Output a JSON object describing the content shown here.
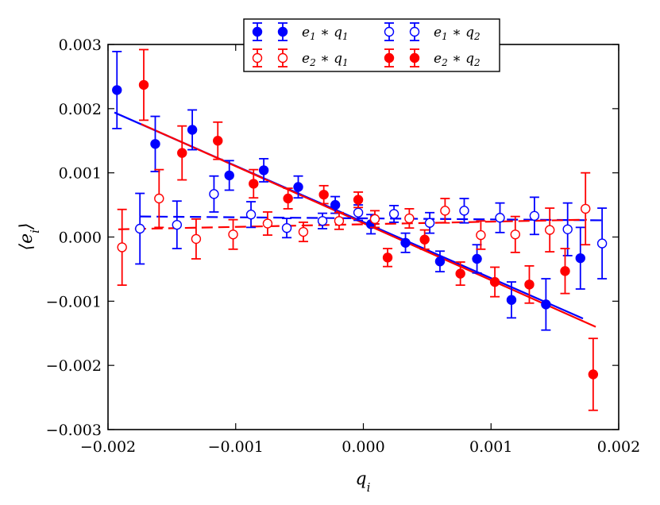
{
  "chart_data": {
    "type": "scatter",
    "title": "",
    "xlabel": "q_i",
    "ylabel": "⟨e_i⟩",
    "xlim": [
      -0.002,
      0.002
    ],
    "ylim": [
      -0.003,
      0.003
    ],
    "grid": false,
    "legend_position": "top-center",
    "x_ticks": [
      -0.002,
      -0.001,
      0.0,
      0.001,
      0.002
    ],
    "x_tick_labels": [
      "−0.002",
      "−0.001",
      "0.000",
      "0.001",
      "0.002"
    ],
    "y_ticks": [
      -0.003,
      -0.002,
      -0.001,
      0.0,
      0.001,
      0.002,
      0.003
    ],
    "y_tick_labels": [
      "−0.003",
      "−0.002",
      "−0.001",
      "0.000",
      "0.001",
      "0.002",
      "0.003"
    ],
    "legend": [
      {
        "label_base": "e",
        "label_sub1": "1",
        "label_mid": " ∗ q",
        "label_sub2": "1",
        "color": "#0000ff",
        "filled": true
      },
      {
        "label_base": "e",
        "label_sub1": "1",
        "label_mid": " ∗ q",
        "label_sub2": "2",
        "color": "#0000ff",
        "filled": false
      },
      {
        "label_base": "e",
        "label_sub1": "2",
        "label_mid": " ∗ q",
        "label_sub2": "1",
        "color": "#ff0000",
        "filled": false
      },
      {
        "label_base": "e",
        "label_sub1": "2",
        "label_mid": " ∗ q",
        "label_sub2": "2",
        "color": "#ff0000",
        "filled": true
      }
    ],
    "series": [
      {
        "name": "e1*q1",
        "color": "#0000ff",
        "filled": true,
        "x": [
          -0.00193,
          -0.00163,
          -0.00134,
          -0.00105,
          -0.00078,
          -0.00051,
          -0.00022,
          6e-05,
          0.00033,
          0.0006,
          0.00089,
          0.00116,
          0.00143,
          0.0017
        ],
        "y": [
          0.00229,
          0.00145,
          0.00167,
          0.00096,
          0.00104,
          0.00078,
          0.0005,
          0.0002,
          -9e-05,
          -0.00038,
          -0.00034,
          -0.00098,
          -0.00105,
          -0.00033
        ],
        "err": [
          0.0006,
          0.00043,
          0.00031,
          0.00023,
          0.00018,
          0.00017,
          0.00013,
          0.00015,
          0.00015,
          0.00016,
          0.00022,
          0.00028,
          0.0004,
          0.00048
        ]
      },
      {
        "name": "e1*q2",
        "color": "#0000ff",
        "filled": false,
        "x": [
          -0.00175,
          -0.00146,
          -0.00117,
          -0.00088,
          -0.0006,
          -0.00032,
          -4e-05,
          0.00024,
          0.00052,
          0.00079,
          0.00107,
          0.00134,
          0.0016,
          0.00187
        ],
        "y": [
          0.00013,
          0.00019,
          0.00067,
          0.00035,
          0.00014,
          0.00025,
          0.00038,
          0.00036,
          0.00022,
          0.00041,
          0.0003,
          0.00033,
          0.00012,
          -0.0001
        ],
        "err": [
          0.00055,
          0.00037,
          0.00028,
          0.0002,
          0.00015,
          0.00012,
          0.00012,
          0.00013,
          0.00016,
          0.00019,
          0.00023,
          0.00029,
          0.00041,
          0.00055
        ]
      },
      {
        "name": "e2*q1",
        "color": "#ff0000",
        "filled": false,
        "x": [
          -0.00189,
          -0.0016,
          -0.00131,
          -0.00102,
          -0.00075,
          -0.00047,
          -0.00019,
          9e-05,
          0.00036,
          0.00064,
          0.00092,
          0.00119,
          0.00146,
          0.00174
        ],
        "y": [
          -0.00016,
          0.0006,
          -3e-05,
          4e-05,
          0.00021,
          8e-05,
          0.00025,
          0.00028,
          0.00029,
          0.00041,
          3e-05,
          4e-05,
          0.00011,
          0.00044
        ],
        "err": [
          0.00059,
          0.00045,
          0.00031,
          0.00023,
          0.00018,
          0.00015,
          0.00013,
          0.00013,
          0.00015,
          0.00019,
          0.00022,
          0.00028,
          0.00034,
          0.00056
        ]
      },
      {
        "name": "e2*q2",
        "color": "#ff0000",
        "filled": true,
        "x": [
          -0.00172,
          -0.00142,
          -0.00114,
          -0.00086,
          -0.00059,
          -0.00031,
          -4e-05,
          0.00019,
          0.00048,
          0.00076,
          0.00103,
          0.0013,
          0.00158,
          0.0018
        ],
        "y": [
          0.00237,
          0.00131,
          0.0015,
          0.00083,
          0.0006,
          0.00066,
          0.00058,
          -0.00032,
          -4e-05,
          -0.00057,
          -0.0007,
          -0.00074,
          -0.00053,
          -0.00214
        ],
        "err": [
          0.00055,
          0.00042,
          0.00029,
          0.00022,
          0.00016,
          0.00014,
          0.00012,
          0.00014,
          0.00015,
          0.00018,
          0.00023,
          0.00029,
          0.00035,
          0.00056
        ]
      }
    ],
    "fit_lines": [
      {
        "name": "e1*q1 fit",
        "color": "#0000ff",
        "style": "solid",
        "x": [
          -0.00195,
          0.00172
        ],
        "y": [
          0.00194,
          -0.00127
        ]
      },
      {
        "name": "e2*q2 fit",
        "color": "#ff0000",
        "style": "solid",
        "x": [
          -0.00174,
          0.00182
        ],
        "y": [
          0.00176,
          -0.0014
        ]
      },
      {
        "name": "e1*q2 fit",
        "color": "#0000ff",
        "style": "dashed",
        "x": [
          -0.00175,
          0.00188
        ],
        "y": [
          0.00032,
          0.00026
        ]
      },
      {
        "name": "e2*q1 fit",
        "color": "#ff0000",
        "style": "dashed",
        "x": [
          -0.00192,
          0.00175
        ],
        "y": [
          0.00012,
          0.00027
        ]
      }
    ]
  }
}
